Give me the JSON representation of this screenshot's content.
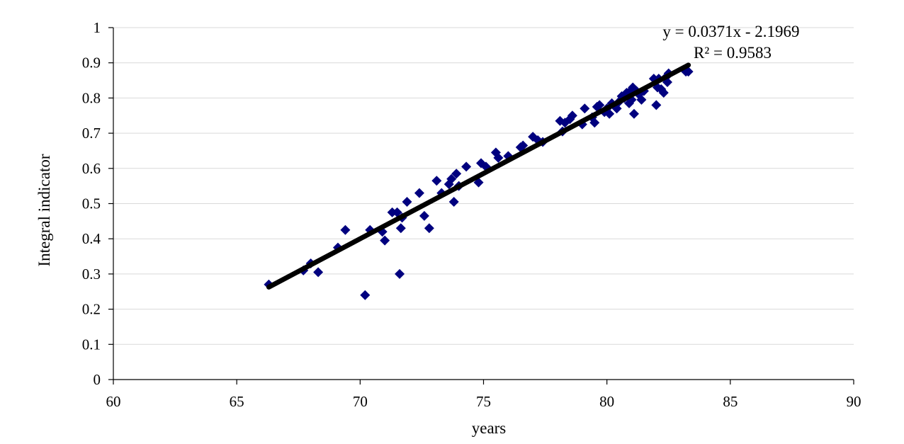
{
  "chart_data": {
    "type": "scatter",
    "xlabel": "years",
    "ylabel": "Integral indicator",
    "xlim": [
      60,
      90
    ],
    "ylim": [
      0,
      1
    ],
    "xticks": [
      "60",
      "65",
      "70",
      "75",
      "80",
      "85",
      "90"
    ],
    "yticks": [
      "0",
      "0.1",
      "0.2",
      "0.3",
      "0.4",
      "0.5",
      "0.6",
      "0.7",
      "0.8",
      "0.9",
      "1"
    ],
    "grid": "horizontal",
    "marker_color": "#00007f",
    "trendline_color": "#000000",
    "trendline": {
      "slope": 0.0371,
      "intercept": -2.1969,
      "x_range": [
        66.3,
        83.3
      ]
    },
    "equation_text": "y = 0.0371x - 2.1969",
    "r2_text": "R² = 0.9583",
    "series": [
      {
        "points": [
          [
            66.3,
            0.27
          ],
          [
            67.7,
            0.31
          ],
          [
            68.0,
            0.33
          ],
          [
            68.3,
            0.305
          ],
          [
            69.1,
            0.375
          ],
          [
            69.4,
            0.425
          ],
          [
            70.2,
            0.24
          ],
          [
            70.4,
            0.425
          ],
          [
            70.9,
            0.42
          ],
          [
            71.0,
            0.395
          ],
          [
            71.3,
            0.475
          ],
          [
            71.5,
            0.475
          ],
          [
            71.6,
            0.3
          ],
          [
            71.65,
            0.43
          ],
          [
            71.7,
            0.46
          ],
          [
            71.9,
            0.505
          ],
          [
            72.4,
            0.53
          ],
          [
            72.6,
            0.465
          ],
          [
            72.8,
            0.43
          ],
          [
            73.1,
            0.565
          ],
          [
            73.3,
            0.53
          ],
          [
            73.6,
            0.555
          ],
          [
            73.7,
            0.57
          ],
          [
            73.8,
            0.505
          ],
          [
            73.9,
            0.585
          ],
          [
            74.0,
            0.55
          ],
          [
            74.3,
            0.605
          ],
          [
            74.8,
            0.56
          ],
          [
            74.9,
            0.615
          ],
          [
            75.1,
            0.605
          ],
          [
            75.5,
            0.645
          ],
          [
            75.6,
            0.63
          ],
          [
            76.0,
            0.635
          ],
          [
            76.5,
            0.66
          ],
          [
            76.6,
            0.665
          ],
          [
            77.0,
            0.69
          ],
          [
            77.2,
            0.68
          ],
          [
            77.4,
            0.675
          ],
          [
            78.1,
            0.735
          ],
          [
            78.2,
            0.705
          ],
          [
            78.3,
            0.73
          ],
          [
            78.5,
            0.74
          ],
          [
            78.6,
            0.75
          ],
          [
            79.0,
            0.725
          ],
          [
            79.1,
            0.77
          ],
          [
            79.4,
            0.745
          ],
          [
            79.5,
            0.73
          ],
          [
            79.6,
            0.775
          ],
          [
            79.7,
            0.78
          ],
          [
            79.9,
            0.76
          ],
          [
            80.0,
            0.77
          ],
          [
            80.1,
            0.755
          ],
          [
            80.2,
            0.785
          ],
          [
            80.4,
            0.77
          ],
          [
            80.5,
            0.79
          ],
          [
            80.6,
            0.805
          ],
          [
            80.7,
            0.8
          ],
          [
            80.8,
            0.815
          ],
          [
            80.9,
            0.785
          ],
          [
            80.95,
            0.82
          ],
          [
            81.0,
            0.795
          ],
          [
            81.05,
            0.83
          ],
          [
            81.1,
            0.755
          ],
          [
            81.2,
            0.82
          ],
          [
            81.3,
            0.81
          ],
          [
            81.4,
            0.795
          ],
          [
            81.5,
            0.82
          ],
          [
            81.9,
            0.855
          ],
          [
            82.0,
            0.78
          ],
          [
            82.05,
            0.83
          ],
          [
            82.1,
            0.855
          ],
          [
            82.2,
            0.825
          ],
          [
            82.3,
            0.815
          ],
          [
            82.4,
            0.86
          ],
          [
            82.45,
            0.845
          ],
          [
            82.5,
            0.87
          ],
          [
            83.2,
            0.875
          ],
          [
            83.3,
            0.875
          ]
        ]
      }
    ]
  }
}
